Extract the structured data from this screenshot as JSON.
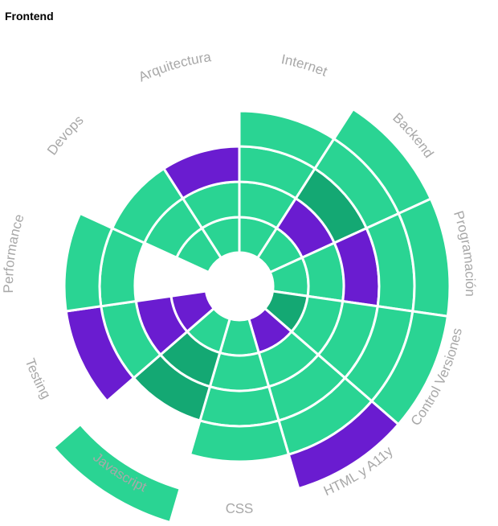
{
  "page": {
    "title": "Frontend"
  },
  "colors": {
    "level_normal": "#2ad493",
    "level_strong": "#14a873",
    "level_highlight": "#6a1cd0",
    "label": "#a8a8a8",
    "background": "#ffffff"
  },
  "chart_data": {
    "type": "radial-bar",
    "levels": [
      "normal",
      "strong",
      "highlight"
    ],
    "categories": [
      {
        "name": "Internet",
        "rings": [
          "normal",
          "normal",
          "normal",
          "normal"
        ]
      },
      {
        "name": "Backend",
        "rings": [
          "normal",
          "highlight",
          "strong",
          "normal",
          "normal"
        ]
      },
      {
        "name": "Programación",
        "rings": [
          "normal",
          "normal",
          "highlight",
          "normal",
          "normal"
        ]
      },
      {
        "name": "Control Versiones",
        "rings": [
          "strong",
          "normal",
          "normal",
          "normal",
          "normal"
        ]
      },
      {
        "name": "HTML y A11y",
        "rings": [
          "highlight",
          "normal",
          "normal",
          "normal",
          "highlight"
        ]
      },
      {
        "name": "CSS",
        "rings": [
          "normal",
          "normal",
          "normal",
          "normal"
        ]
      },
      {
        "name": "Javascript",
        "rings": [
          "normal",
          "strong",
          "strong",
          "",
          "",
          "normal"
        ]
      },
      {
        "name": "Testing",
        "rings": [
          "highlight",
          "highlight",
          "normal",
          "highlight"
        ]
      },
      {
        "name": "Performance",
        "rings": [
          "",
          "",
          "normal",
          "normal"
        ]
      },
      {
        "name": "Devops",
        "rings": [
          "normal",
          "normal",
          "normal"
        ]
      },
      {
        "name": "Arquitectura",
        "rings": [
          "normal",
          "normal",
          "highlight"
        ]
      }
    ]
  }
}
